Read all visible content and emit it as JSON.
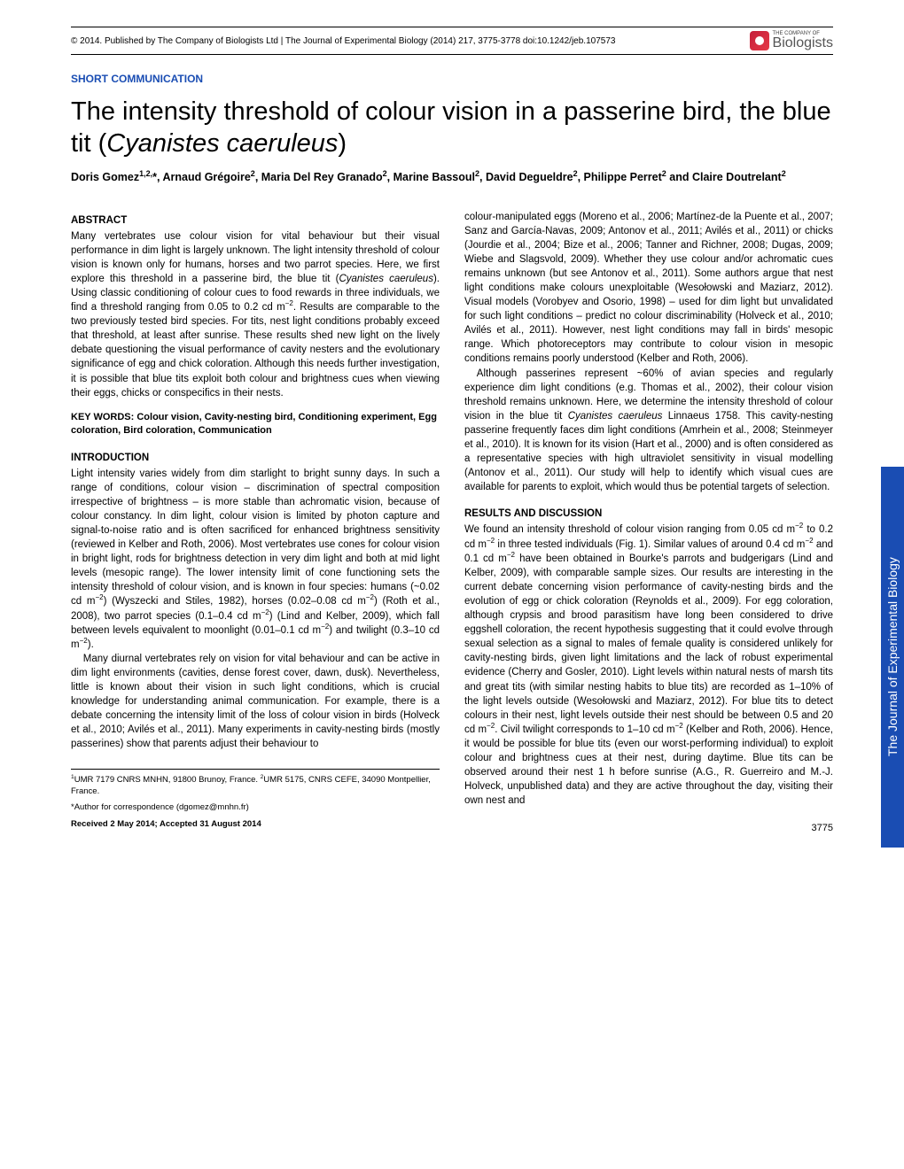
{
  "header": {
    "copyright": "© 2014. Published by The Company of Biologists Ltd | The Journal of Experimental Biology (2014) 217, 3775-3778 doi:10.1242/jeb.107573",
    "logo_small": "THE COMPANY OF",
    "logo_name": "Biologists"
  },
  "section_label": "SHORT COMMUNICATION",
  "title_part1": "The intensity threshold of colour vision in a passerine bird, the blue tit (",
  "title_italic": "Cyanistes caeruleus",
  "title_part2": ")",
  "authors_html": "Doris Gomez<sup>1,2,</sup>*, Arnaud Grégoire<sup>2</sup>, Maria Del Rey Granado<sup>2</sup>, Marine Bassoul<sup>2</sup>, David Degueldre<sup>2</sup>, Philippe Perret<sup>2</sup> and Claire Doutrelant<sup>2</sup>",
  "abstract_heading": "ABSTRACT",
  "abstract_text": "Many vertebrates use colour vision for vital behaviour but their visual performance in dim light is largely unknown. The light intensity threshold of colour vision is known only for humans, horses and two parrot species. Here, we first explore this threshold in a passerine bird, the blue tit (Cyanistes caeruleus). Using classic conditioning of colour cues to food rewards in three individuals, we find a threshold ranging from 0.05 to 0.2 cd m−2. Results are comparable to the two previously tested bird species. For tits, nest light conditions probably exceed that threshold, at least after sunrise. These results shed new light on the lively debate questioning the visual performance of cavity nesters and the evolutionary significance of egg and chick coloration. Although this needs further investigation, it is possible that blue tits exploit both colour and brightness cues when viewing their eggs, chicks or conspecifics in their nests.",
  "keywords": "KEY WORDS: Colour vision, Cavity-nesting bird, Conditioning experiment, Egg coloration, Bird coloration, Communication",
  "intro_heading": "INTRODUCTION",
  "intro_p1": "Light intensity varies widely from dim starlight to bright sunny days. In such a range of conditions, colour vision – discrimination of spectral composition irrespective of brightness – is more stable than achromatic vision, because of colour constancy. In dim light, colour vision is limited by photon capture and signal-to-noise ratio and is often sacrificed for enhanced brightness sensitivity (reviewed in Kelber and Roth, 2006). Most vertebrates use cones for colour vision in bright light, rods for brightness detection in very dim light and both at mid light levels (mesopic range). The lower intensity limit of cone functioning sets the intensity threshold of colour vision, and is known in four species: humans (~0.02 cd m−2) (Wyszecki and Stiles, 1982), horses (0.02–0.08 cd m−2) (Roth et al., 2008), two parrot species (0.1–0.4 cd m−2) (Lind and Kelber, 2009), which fall between levels equivalent to moonlight (0.01–0.1 cd m−2) and twilight (0.3–10 cd m−2).",
  "intro_p2": "Many diurnal vertebrates rely on vision for vital behaviour and can be active in dim light environments (cavities, dense forest cover, dawn, dusk). Nevertheless, little is known about their vision in such light conditions, which is crucial knowledge for understanding animal communication. For example, there is a debate concerning the intensity limit of the loss of colour vision in birds (Holveck et al., 2010; Avilés et al., 2011). Many experiments in cavity-nesting birds (mostly passerines) show that parents adjust their behaviour to",
  "right_p1": "colour-manipulated eggs (Moreno et al., 2006; Martínez-de la Puente et al., 2007; Sanz and García-Navas, 2009; Antonov et al., 2011; Avilés et al., 2011) or chicks (Jourdie et al., 2004; Bize et al., 2006; Tanner and Richner, 2008; Dugas, 2009; Wiebe and Slagsvold, 2009). Whether they use colour and/or achromatic cues remains unknown (but see Antonov et al., 2011). Some authors argue that nest light conditions make colours unexploitable (Wesołowski and Maziarz, 2012). Visual models (Vorobyev and Osorio, 1998) – used for dim light but unvalidated for such light conditions – predict no colour discriminability (Holveck et al., 2010; Avilés et al., 2011). However, nest light conditions may fall in birds' mesopic range. Which photoreceptors may contribute to colour vision in mesopic conditions remains poorly understood (Kelber and Roth, 2006).",
  "right_p2": "Although passerines represent ~60% of avian species and regularly experience dim light conditions (e.g. Thomas et al., 2002), their colour vision threshold remains unknown. Here, we determine the intensity threshold of colour vision in the blue tit Cyanistes caeruleus Linnaeus 1758. This cavity-nesting passerine frequently faces dim light conditions (Amrhein et al., 2008; Steinmeyer et al., 2010). It is known for its vision (Hart et al., 2000) and is often considered as a representative species with high ultraviolet sensitivity in visual modelling (Antonov et al., 2011). Our study will help to identify which visual cues are available for parents to exploit, which would thus be potential targets of selection.",
  "results_heading": "RESULTS AND DISCUSSION",
  "results_p1": "We found an intensity threshold of colour vision ranging from 0.05 cd m−2 to 0.2 cd m−2 in three tested individuals (Fig. 1). Similar values of around 0.4 cd m−2 and 0.1 cd m−2 have been obtained in Bourke's parrots and budgerigars (Lind and Kelber, 2009), with comparable sample sizes. Our results are interesting in the current debate concerning vision performance of cavity-nesting birds and the evolution of egg or chick coloration (Reynolds et al., 2009). For egg coloration, although crypsis and brood parasitism have long been considered to drive eggshell coloration, the recent hypothesis suggesting that it could evolve through sexual selection as a signal to males of female quality is considered unlikely for cavity-nesting birds, given light limitations and the lack of robust experimental evidence (Cherry and Gosler, 2010). Light levels within natural nests of marsh tits and great tits (with similar nesting habits to blue tits) are recorded as 1–10% of the light levels outside (Wesołowski and Maziarz, 2012). For blue tits to detect colours in their nest, light levels outside their nest should be between 0.5 and 20 cd m−2. Civil twilight corresponds to 1–10 cd m−2 (Kelber and Roth, 2006). Hence, it would be possible for blue tits (even our worst-performing individual) to exploit colour and brightness cues at their nest, during daytime. Blue tits can be observed around their nest 1 h before sunrise (A.G., R. Guerreiro and M.-J. Holveck, unpublished data) and they are active throughout the day, visiting their own nest and",
  "affiliations": "1UMR 7179 CNRS MNHN, 91800 Brunoy, France. 2UMR 5175, CNRS CEFE, 34090 Montpellier, France.",
  "corresponding": "*Author for correspondence (dgomez@mnhn.fr)",
  "received": "Received 2 May 2014; Accepted 31 August 2014",
  "side_tab": "The Journal of Experimental Biology",
  "page_number": "3775",
  "colors": {
    "accent_blue": "#1a4db3",
    "logo_red": "#c41e3a"
  }
}
